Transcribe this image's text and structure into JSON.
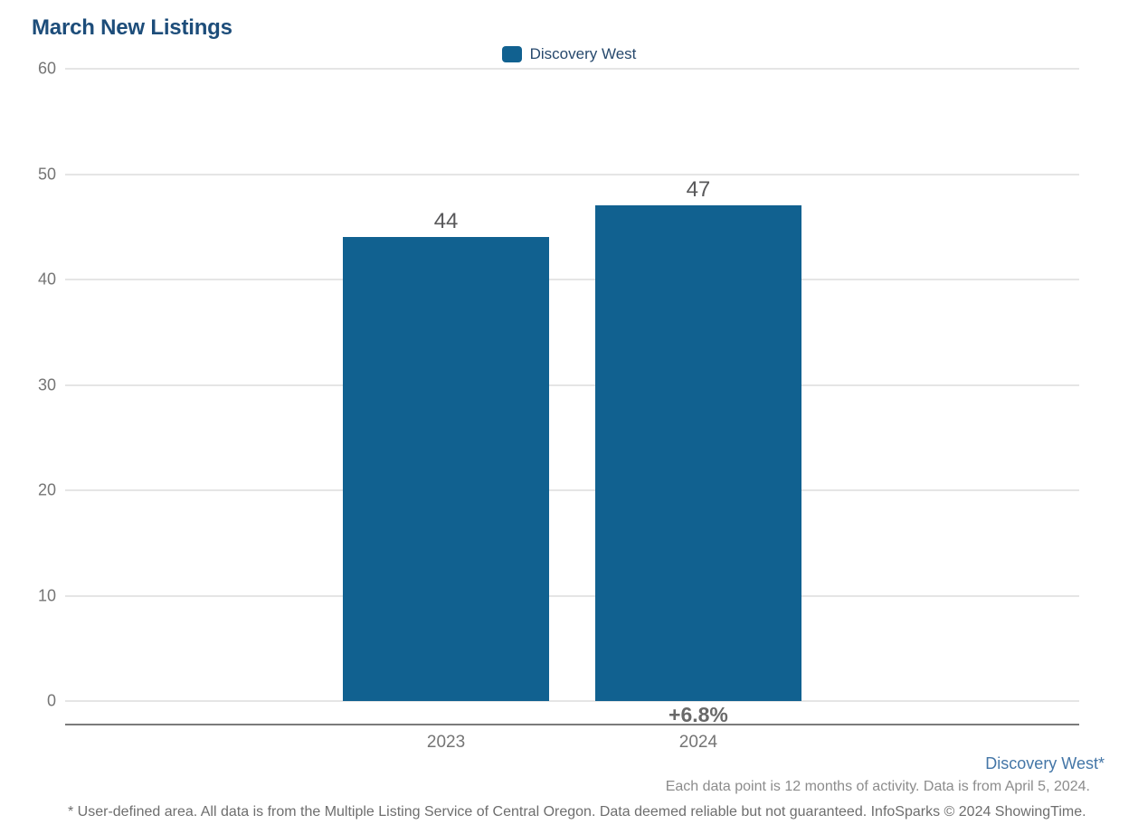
{
  "title": "March New Listings",
  "legend": {
    "label": "Discovery West"
  },
  "chart_data": {
    "type": "bar",
    "title": "March New Listings",
    "series_name": "Discovery West",
    "categories": [
      "2023",
      "2024"
    ],
    "values": [
      44,
      47
    ],
    "xlabel": "",
    "ylabel": "",
    "ylim": [
      0,
      60
    ],
    "yticks": [
      0,
      10,
      20,
      30,
      40,
      50,
      60
    ],
    "grid": true,
    "legend_position": "top-center",
    "bar_color": "#116190",
    "change_annotation": {
      "category": "2024",
      "label": "+6.8%"
    }
  },
  "footer": {
    "area_link": "Discovery West*",
    "data_note": "Each data point is 12 months of activity. Data is from April 5, 2024.",
    "disclaimer": "* User-defined area. All data is from the Multiple Listing Service of Central Oregon. Data deemed reliable but not guaranteed. InfoSparks © 2024 ShowingTime."
  },
  "colors": {
    "bar": "#116190",
    "title": "#1D4D7A",
    "legend_text": "#27496D",
    "link": "#4476A7",
    "tick_label": "#757575",
    "value_label": "#58585A",
    "delta_label": "#696969",
    "note": "#8C8C8C",
    "disclaimer_text": "#6E6E6E",
    "gridline": "#E5E5E5",
    "axis_line": "#7B7B7B"
  }
}
